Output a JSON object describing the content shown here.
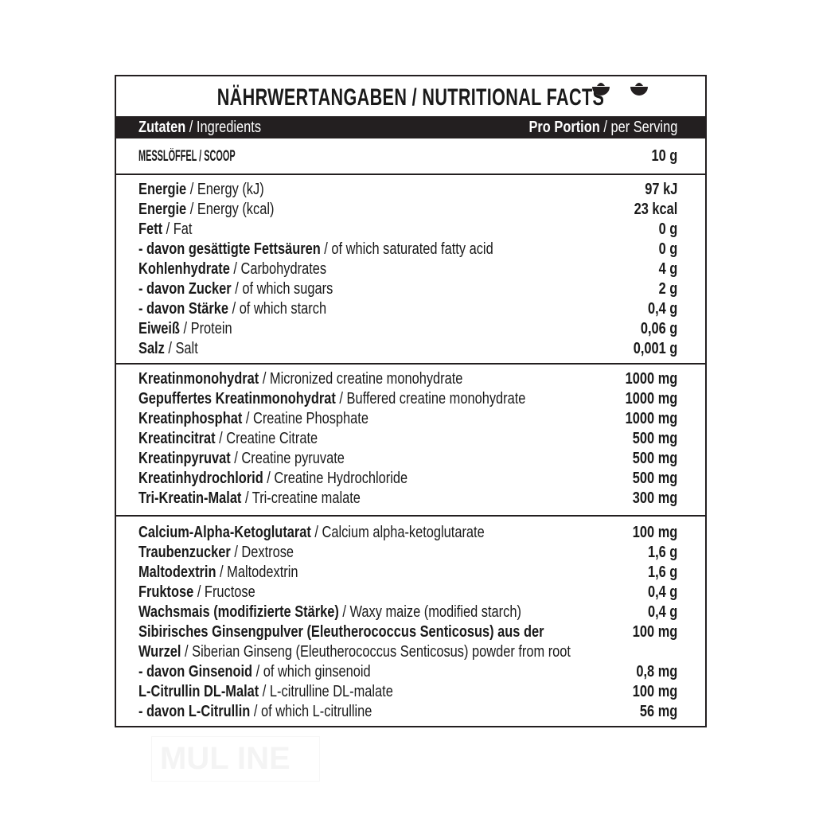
{
  "title": "NÄHRWERTANGABEN / NUTRITIONAL FACTS",
  "header": {
    "left_de": "Zutaten",
    "left_en": "Ingredients",
    "right_de": "Pro Portion",
    "right_en": "per Serving"
  },
  "scoop": {
    "label": "MESSLÖFFEL / SCOOP",
    "value": "10 g",
    "icon": "scoop-icon"
  },
  "sections": [
    [
      {
        "de": "Energie",
        "en": "Energy (kJ)",
        "v": "97 kJ"
      },
      {
        "de": "Energie",
        "en": "Energy (kcal)",
        "v": "23 kcal"
      },
      {
        "de": "Fett",
        "en": "Fat",
        "v": "0 g"
      },
      {
        "de": "- davon gesättigte Fettsäuren",
        "en": "of which saturated fatty acid",
        "v": "0 g"
      },
      {
        "de": "Kohlenhydrate",
        "en": "Carbohydrates",
        "v": "4 g"
      },
      {
        "de": "- davon Zucker",
        "en": "of which sugars",
        "v": "2 g"
      },
      {
        "de": "- davon Stärke",
        "en": "of which starch",
        "v": "0,4 g"
      },
      {
        "de": "Eiweiß",
        "en": "Protein",
        "v": "0,06 g"
      },
      {
        "de": "Salz",
        "en": "Salt",
        "v": "0,001 g"
      }
    ],
    [
      {
        "de": "Kreatinmonohydrat",
        "en": "Micronized creatine monohydrate",
        "v": "1000 mg"
      },
      {
        "de": "Gepuffertes Kreatinmonohydrat",
        "en": "Buffered creatine monohydrate",
        "v": "1000 mg"
      },
      {
        "de": "Kreatinphosphat",
        "en": "Creatine Phosphate",
        "v": "1000 mg"
      },
      {
        "de": "Kreatincitrat",
        "en": "Creatine Citrate",
        "v": "500 mg"
      },
      {
        "de": "Kreatinpyruvat",
        "en": "Creatine pyruvate",
        "v": "500 mg"
      },
      {
        "de": "Kreatinhydrochlorid",
        "en": "Creatine Hydrochloride",
        "v": "500 mg"
      },
      {
        "de": "Tri-Kreatin-Malat",
        "en": "Tri-creatine malate",
        "v": "300 mg"
      }
    ],
    [
      {
        "de": "Calcium-Alpha-Ketoglutarat",
        "en": "Calcium alpha-ketoglutarate",
        "v": "100 mg"
      },
      {
        "de": "Traubenzucker",
        "en": "Dextrose",
        "v": "1,6 g"
      },
      {
        "de": "Maltodextrin",
        "en": "Maltodextrin",
        "v": "1,6 g"
      },
      {
        "de": "Fruktose",
        "en": "Fructose",
        "v": "0,4 g"
      },
      {
        "de": "Wachsmais (modifizierte Stärke)",
        "en": "Waxy maize (modified starch)",
        "v": "0,4 g"
      },
      {
        "de": "Sibirisches Ginsengpulver (Eleutherococcus Senticosus) aus der",
        "en": "",
        "v": "100 mg"
      },
      {
        "de": "Wurzel",
        "en": "Siberian Ginseng (Eleutherococcus Senticosus) powder from root",
        "v": ""
      },
      {
        "de": "- davon Ginsenoid",
        "en": "of which ginsenoid",
        "v": "0,8 mg"
      },
      {
        "de": "L-Citrullin DL-Malat",
        "en": "L-citrulline DL-malate",
        "v": "100 mg"
      },
      {
        "de": "- davon L-Citrullin",
        "en": "of which L-citrulline",
        "v": "56 mg"
      }
    ]
  ],
  "watermark": "MUL INE"
}
